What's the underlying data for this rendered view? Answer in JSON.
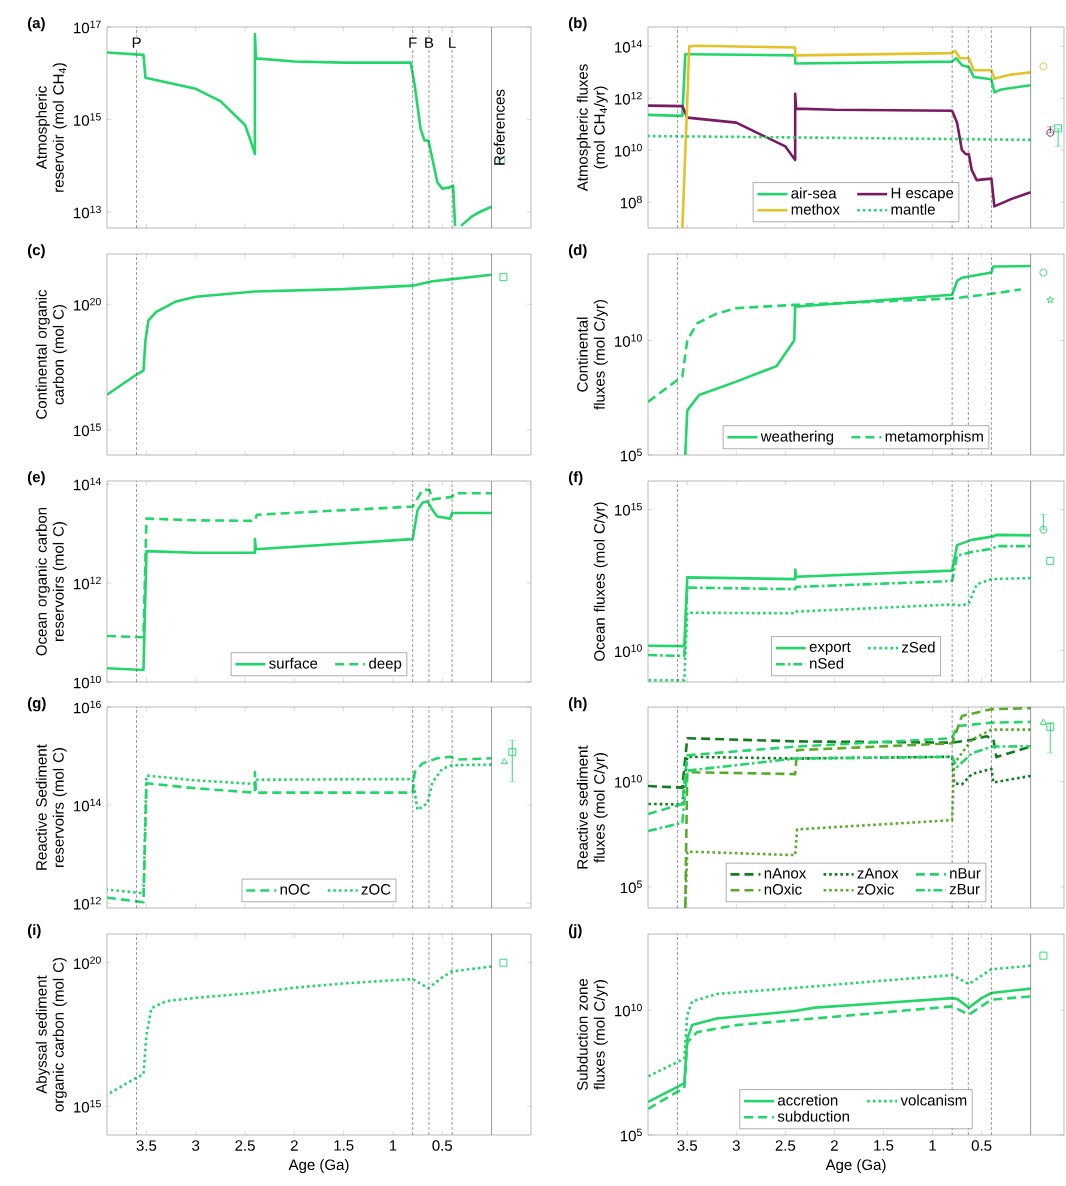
{
  "chart_data": [
    {
      "type": "line",
      "title": "(a)",
      "ylabel": "Atmospheric reservoir (mol CH$_{4}$)",
      "log": "y",
      "tick_labels": "y",
      "legend": false,
      "xlim": [
        3.9,
        -0.4
      ],
      "xticks": [
        3.5,
        3,
        2.5,
        2,
        1.5,
        1,
        0.5
      ],
      "ylim": [
        4500000000000.0,
        1e+17
      ],
      "yticks": [
        {
          "value": 10000000000000.0,
          "label": "10$^{13}$"
        },
        {
          "value": 1000000000000000.0,
          "label": "10$^{15}$"
        },
        {
          "value": 1e+17,
          "label": "10$^{17}$"
        }
      ],
      "ref_lines": [
        {
          "axis": "x",
          "value": 3.6,
          "label": "P",
          "line_style": "dashed",
          "color": "#555555"
        },
        {
          "axis": "x",
          "value": 0.8,
          "label": "F",
          "line_style": "dashed",
          "color": "#555555"
        },
        {
          "axis": "x",
          "value": 0.635,
          "label": "B",
          "line_style": "dashed",
          "color": "#555555"
        },
        {
          "axis": "x",
          "value": 0.4,
          "label": "L",
          "line_style": "dashed",
          "color": "#555555"
        },
        {
          "axis": "x",
          "value": 0,
          "label": "References",
          "line_style": "solid",
          "color": "#555555"
        }
      ],
      "series": [
        {
          "color": "#22d66a",
          "line_style": "solid",
          "x": [
            3.9,
            3.53,
            3.51,
            3.0,
            2.75,
            2.5,
            2.45,
            2.4,
            2.4,
            2.39,
            2.0,
            1.5,
            0.82,
            0.78,
            0.72,
            0.68,
            0.64,
            0.6,
            0.55,
            0.5,
            0.42,
            0.39,
            0.37,
            0.34,
            0.31,
            0.2,
            0.1,
            0.0
          ],
          "values": [
            2.8e+16,
            2.5e+16,
            8000000000000000.0,
            4600000000000000.0,
            2500000000000000.0,
            760000000000000.0,
            380000000000000.0,
            180000000000000.0,
            7e+16,
            2.1e+16,
            1.8e+16,
            1.7e+16,
            1.7e+16,
            5600000000000000.0,
            630000000000000.0,
            350000000000000.0,
            350000000000000.0,
            140000000000000.0,
            44000000000000.0,
            32000000000000.0,
            34000000000000.0,
            37000000000000.0,
            5000000000000.0,
            null,
            5000000000000.0,
            8000000000000.0,
            10500000000000.0,
            13000000000000.0
          ]
        },
        {
          "type": "scatter",
          "marker": "circle",
          "color": "#22d66a",
          "x": [
            -0.1
          ],
          "values": [
            130000000000000.0
          ]
        }
      ]
    },
    {
      "type": "line",
      "title": "(b)",
      "ylabel": "Atmospheric fluxes (mol CH$_{4}$/yr)",
      "log": "y",
      "tick_labels": "y",
      "legend": "bottom",
      "xlim": [
        3.9,
        -0.34
      ],
      "xticks": [
        3.5,
        3,
        2.5,
        2,
        1.5,
        1,
        0.5
      ],
      "ylim": [
        10000000.0,
        560000000000000.0
      ],
      "yticks": [
        {
          "value": 100000000.0,
          "label": "10$^{8}$"
        },
        {
          "value": 10000000000.0,
          "label": "10$^{10}$"
        },
        {
          "value": 1000000000000.0,
          "label": "10$^{12}$"
        },
        {
          "value": 100000000000000.0,
          "label": "10$^{14}$"
        }
      ],
      "ref_lines": [
        {
          "axis": "x",
          "value": 3.6,
          "line_style": "dashed",
          "color": "#555555"
        },
        {
          "axis": "x",
          "value": 0.8,
          "line_style": "dashed",
          "color": "#555555"
        },
        {
          "axis": "x",
          "value": 0.635,
          "line_style": "dashed",
          "color": "#555555"
        },
        {
          "axis": "x",
          "value": 0.4,
          "line_style": "dashed",
          "color": "#555555"
        },
        {
          "axis": "x",
          "value": 0,
          "line_style": "solid",
          "color": "#555555"
        }
      ],
      "series": [
        {
          "name": "air-sea",
          "color": "#22d66a",
          "line_style": "solid",
          "x": [
            3.9,
            3.55,
            3.52,
            3.45,
            2.4,
            2.4,
            0.8,
            0.76,
            0.7,
            0.63,
            0.58,
            0.4,
            0.37,
            0.3,
            0.0
          ],
          "values": [
            230000000000.0,
            210000000000.0,
            50000000000000.0,
            50000000000000.0,
            45000000000000.0,
            22000000000000.0,
            26000000000000.0,
            35000000000000.0,
            19000000000000.0,
            16000000000000.0,
            6600000000000.0,
            5400000000000.0,
            1700000000000.0,
            2200000000000.0,
            3200000000000.0
          ]
        },
        {
          "name": "H escape",
          "color": "#7a1a62",
          "line_style": "solid",
          "x": [
            3.9,
            3.55,
            3.5,
            3.0,
            2.75,
            2.5,
            2.4,
            2.4,
            2.39,
            2.0,
            0.8,
            0.75,
            0.7,
            0.66,
            0.63,
            0.6,
            0.55,
            0.4,
            0.37,
            0.2,
            0.0
          ],
          "values": [
            520000000000.0,
            500000000000.0,
            180000000000.0,
            115000000000.0,
            40000000000.0,
            14000000000.0,
            4200000000.0,
            1500000000000.0,
            400000000000.0,
            360000000000.0,
            330000000000.0,
            115000000000.0,
            10000000000.0,
            7000000000.0,
            7000000000.0,
            1700000000.0,
            700000000.0,
            800000000.0,
            68000000.0,
            130000000.0,
            240000000.0
          ]
        },
        {
          "name": "methox",
          "color": "#e3c22b",
          "line_style": "solid",
          "x": [
            3.55,
            3.5,
            3.48,
            3.4,
            2.4,
            2.4,
            0.8,
            0.77,
            0.72,
            0.63,
            0.58,
            0.4,
            0.37,
            0.2,
            0.0
          ],
          "values": [
            10000000.0,
            690000000000.0,
            100000000000000.0,
            106000000000000.0,
            91000000000000.0,
            45000000000000.0,
            55000000000000.0,
            68000000000000.0,
            35000000000000.0,
            35000000000000.0,
            12000000000000.0,
            12000000000000.0,
            5700000000000.0,
            8200000000000.0,
            10000000000000.0
          ]
        },
        {
          "name": "mantle",
          "color": "#22d66a",
          "line_style": "dotted",
          "x": [
            3.9,
            2.0,
            0.0
          ],
          "values": [
            35000000000.0,
            30000000000.0,
            25000000000.0
          ]
        },
        {
          "type": "scatter",
          "marker": "circle",
          "color": "#e3c22b",
          "x": [
            -0.13
          ],
          "values": [
            17000000000000.0
          ]
        },
        {
          "type": "scatter",
          "marker": "circle",
          "color": "#7a1a62",
          "x": [
            -0.2
          ],
          "values": [
            47000000000.0
          ],
          "errors": [
            [
              47000000000.0,
              80000000000.0
            ]
          ]
        },
        {
          "type": "scatter",
          "marker": "square",
          "color": "#22d66a",
          "x": [
            -0.28
          ],
          "values": [
            70000000000.0
          ],
          "errors": [
            [
              14000000000.0,
              70000000000.0
            ]
          ]
        }
      ]
    },
    {
      "type": "line",
      "title": "(c)",
      "ylabel": "Continental organic carbon (mol C)",
      "log": "y",
      "tick_labels": "y",
      "legend": false,
      "xlim": [
        3.9,
        -0.4
      ],
      "xticks": [
        3.5,
        3,
        2.5,
        2,
        1.5,
        1,
        0.5
      ],
      "ylim": [
        100000000000000.0,
        1e+22
      ],
      "yticks": [
        {
          "value": 1000000000000000.0,
          "label": "10$^{15}$"
        },
        {
          "value": 1e+20,
          "label": "10$^{20}$"
        }
      ],
      "ref_lines": [
        {
          "axis": "x",
          "value": 3.6,
          "line_style": "dashed",
          "color": "#555555"
        },
        {
          "axis": "x",
          "value": 0.8,
          "line_style": "dashed",
          "color": "#555555"
        },
        {
          "axis": "x",
          "value": 0.635,
          "line_style": "dashed",
          "color": "#555555"
        },
        {
          "axis": "x",
          "value": 0.4,
          "line_style": "dashed",
          "color": "#555555"
        },
        {
          "axis": "x",
          "value": 0,
          "line_style": "solid",
          "color": "#555555"
        }
      ],
      "series": [
        {
          "color": "#22d66a",
          "line_style": "solid",
          "x": [
            3.9,
            3.6,
            3.53,
            3.51,
            3.48,
            3.4,
            3.2,
            3.0,
            2.4,
            1.5,
            0.8,
            0.6,
            0.4,
            0.0
          ],
          "values": [
            2.5e+16,
            1.6e+17,
            2.3e+17,
            3.6e+18,
            2.3e+19,
            5e+19,
            1.3e+20,
            2e+20,
            3.2e+20,
            4e+20,
            5.5e+20,
            8.3e+20,
            1e+21,
            1.5e+21
          ]
        },
        {
          "type": "scatter",
          "marker": "square",
          "color": "#22d66a",
          "x": [
            -0.12
          ],
          "values": [
            1.2e+21
          ]
        }
      ]
    },
    {
      "type": "line",
      "title": "(d)",
      "ylabel": "Continental fluxes (mol C/yr)",
      "log": "y",
      "tick_labels": "y",
      "legend": "bottom",
      "xlim": [
        3.9,
        -0.34
      ],
      "xticks": [
        3.5,
        3,
        2.5,
        2,
        1.5,
        1,
        0.5
      ],
      "ylim": [
        100000.0,
        60000000000000.0
      ],
      "yticks": [
        {
          "value": 100000.0,
          "label": "10$^{5}$"
        },
        {
          "value": 10000000000.0,
          "label": "10$^{10}$"
        }
      ],
      "ref_lines": [
        {
          "axis": "x",
          "value": 3.6,
          "line_style": "dashed",
          "color": "#555555"
        },
        {
          "axis": "x",
          "value": 0.8,
          "line_style": "dashed",
          "color": "#555555"
        },
        {
          "axis": "x",
          "value": 0.635,
          "line_style": "dashed",
          "color": "#555555"
        },
        {
          "axis": "x",
          "value": 0.4,
          "line_style": "dashed",
          "color": "#555555"
        },
        {
          "axis": "x",
          "value": 0,
          "line_style": "solid",
          "color": "#555555"
        }
      ],
      "series": [
        {
          "name": "weathering",
          "color": "#22d66a",
          "line_style": "solid",
          "x": [
            3.52,
            3.5,
            3.38,
            3.0,
            2.59,
            2.41,
            2.4,
            1.5,
            0.8,
            0.75,
            0.7,
            0.4,
            0.38,
            0.0
          ],
          "values": [
            100000.0,
            8700000.0,
            42000000.0,
            160000000.0,
            760000000.0,
            10000000000.0,
            300000000000.0,
            590000000000.0,
            1000000000000.0,
            4000000000000.0,
            5500000000000.0,
            9300000000000.0,
            17000000000000.0,
            18000000000000.0
          ]
        },
        {
          "name": "metamorphism",
          "color": "#22d66a",
          "line_style": "dashed",
          "x": [
            3.9,
            3.6,
            3.55,
            3.5,
            3.4,
            3.2,
            3.0,
            2.4,
            0.8,
            0.4,
            0.1
          ],
          "values": [
            21000000.0,
            190000000.0,
            270000000.0,
            10000000000.0,
            56000000000.0,
            150000000000.0,
            260000000000.0,
            360000000000.0,
            680000000000.0,
            1100000000000.0,
            1700000000000.0
          ]
        },
        {
          "type": "scatter",
          "marker": "circle",
          "color": "#22d66a",
          "x": [
            -0.13
          ],
          "values": [
            9300000000000.0
          ]
        },
        {
          "type": "scatter",
          "marker": "star",
          "color": "#22d66a",
          "x": [
            -0.2
          ],
          "values": [
            590000000000.0
          ]
        }
      ]
    },
    {
      "type": "line",
      "title": "(e)",
      "ylabel": "Ocean organic carbon reservoirs (mol C)",
      "log": "y",
      "tick_labels": "y",
      "legend": "bottom",
      "xlim": [
        3.9,
        -0.4
      ],
      "xticks": [
        3.5,
        3,
        2.5,
        2,
        1.5,
        1,
        0.5
      ],
      "ylim": [
        10000000000.0,
        115000000000000.0
      ],
      "yticks": [
        {
          "value": 10000000000.0,
          "label": "10$^{10}$"
        },
        {
          "value": 1000000000000.0,
          "label": "10$^{12}$"
        },
        {
          "value": 100000000000000.0,
          "label": "10$^{14}$"
        }
      ],
      "ref_lines": [
        {
          "axis": "x",
          "value": 3.6,
          "line_style": "dashed",
          "color": "#555555"
        },
        {
          "axis": "x",
          "value": 0.8,
          "line_style": "dashed",
          "color": "#555555"
        },
        {
          "axis": "x",
          "value": 0.635,
          "line_style": "dashed",
          "color": "#555555"
        },
        {
          "axis": "x",
          "value": 0.4,
          "line_style": "dashed",
          "color": "#555555"
        },
        {
          "axis": "x",
          "value": 0,
          "line_style": "solid",
          "color": "#555555"
        }
      ],
      "series": [
        {
          "name": "surface",
          "color": "#22d66a",
          "line_style": "solid",
          "x": [
            3.9,
            3.53,
            3.5,
            3.0,
            2.4,
            2.4,
            2.39,
            0.8,
            0.75,
            0.7,
            0.65,
            0.6,
            0.55,
            0.42,
            0.4,
            0.0
          ],
          "values": [
            19000000000.0,
            17500000000.0,
            4400000000000.0,
            4100000000000.0,
            4100000000000.0,
            7700000000000.0,
            4800000000000.0,
            7700000000000.0,
            30000000000000.0,
            42000000000000.0,
            45000000000000.0,
            30000000000000.0,
            22000000000000.0,
            20000000000000.0,
            26000000000000.0,
            26000000000000.0
          ]
        },
        {
          "name": "deep",
          "color": "#22d66a",
          "line_style": "dashed",
          "x": [
            3.9,
            3.53,
            3.5,
            3.0,
            2.4,
            2.38,
            0.8,
            0.7,
            0.63,
            0.6,
            0.4,
            0.38,
            0.0
          ],
          "values": [
            85000000000.0,
            80000000000.0,
            20000000000000.0,
            18500000000000.0,
            18000000000000.0,
            24000000000000.0,
            35000000000000.0,
            76000000000000.0,
            76000000000000.0,
            49000000000000.0,
            55000000000000.0,
            65000000000000.0,
            65000000000000.0
          ]
        }
      ]
    },
    {
      "type": "line",
      "title": "(f)",
      "ylabel": "Ocean fluxes (mol C/yr)",
      "log": "y",
      "tick_labels": "y",
      "legend": "bottom",
      "xlim": [
        3.9,
        -0.34
      ],
      "xticks": [
        3.5,
        3,
        2.5,
        2,
        1.5,
        1,
        0.5
      ],
      "ylim": [
        780000000.0,
        1e+16
      ],
      "yticks": [
        {
          "value": 10000000000.0,
          "label": "10$^{10}$"
        },
        {
          "value": 1000000000000000.0,
          "label": "10$^{15}$"
        }
      ],
      "ref_lines": [
        {
          "axis": "x",
          "value": 3.6,
          "line_style": "dashed",
          "color": "#555555"
        },
        {
          "axis": "x",
          "value": 0.8,
          "line_style": "dashed",
          "color": "#555555"
        },
        {
          "axis": "x",
          "value": 0.635,
          "line_style": "dashed",
          "color": "#555555"
        },
        {
          "axis": "x",
          "value": 0.4,
          "line_style": "dashed",
          "color": "#555555"
        },
        {
          "axis": "x",
          "value": 0,
          "line_style": "solid",
          "color": "#555555"
        }
      ],
      "series": [
        {
          "name": "export",
          "color": "#22d66a",
          "line_style": "solid",
          "x": [
            3.9,
            3.53,
            3.5,
            2.4,
            2.4,
            2.39,
            0.8,
            0.75,
            0.6,
            0.38,
            0.35,
            0.0
          ],
          "values": [
            15000000000.0,
            14500000000.0,
            3900000000000.0,
            3400000000000.0,
            7400000000000.0,
            4100000000000.0,
            6800000000000.0,
            54000000000000.0,
            83000000000000.0,
            110000000000000.0,
            125000000000000.0,
            120000000000000.0
          ]
        },
        {
          "name": "zSed",
          "color": "#22d66a",
          "line_style": "dotted",
          "x": [
            3.9,
            3.53,
            3.5,
            2.4,
            2.39,
            0.8,
            0.7,
            0.63,
            0.55,
            0.4,
            0.0
          ],
          "values": [
            900000000.0,
            900000000.0,
            220000000000.0,
            210000000000.0,
            240000000000.0,
            430000000000.0,
            390000000000.0,
            480000000000.0,
            2200000000000.0,
            3400000000000.0,
            3700000000000.0
          ]
        },
        {
          "name": "nSed",
          "color": "#22d66a",
          "line_style": "dashdot",
          "x": [
            3.9,
            3.53,
            3.5,
            2.4,
            2.39,
            0.8,
            0.75,
            0.6,
            0.38,
            0.35,
            0.0
          ],
          "values": [
            7000000000.0,
            6500000000.0,
            1700000000000.0,
            1500000000000.0,
            1800000000000.0,
            2900000000000.0,
            23000000000000.0,
            31000000000000.0,
            41000000000000.0,
            50000000000000.0,
            50000000000000.0
          ]
        },
        {
          "type": "scatter",
          "marker": "circle",
          "color": "#22d66a",
          "x": [
            -0.13
          ],
          "values": [
            190000000000000.0
          ],
          "errors": [
            [
              190000000000000.0,
              660000000000000.0
            ]
          ]
        },
        {
          "type": "scatter",
          "marker": "square",
          "color": "#22d66a",
          "x": [
            -0.2
          ],
          "values": [
            15000000000000.0
          ]
        }
      ]
    },
    {
      "type": "line",
      "title": "(g)",
      "ylabel": "Reactive Sediment reservoirs (mol C)",
      "log": "y",
      "tick_labels": "y",
      "legend": "bottom",
      "xlim": [
        3.9,
        -0.4
      ],
      "xticks": [
        3.5,
        3,
        2.5,
        2,
        1.5,
        1,
        0.5
      ],
      "ylim": [
        800000000000.0,
        1e+16
      ],
      "yticks": [
        {
          "value": 1000000000000.0,
          "label": "10$^{12}$"
        },
        {
          "value": 100000000000000.0,
          "label": "10$^{14}$"
        },
        {
          "value": 1e+16,
          "label": "10$^{16}$"
        }
      ],
      "ref_lines": [
        {
          "axis": "x",
          "value": 3.6,
          "line_style": "dashed",
          "color": "#555555"
        },
        {
          "axis": "x",
          "value": 0.8,
          "line_style": "dashed",
          "color": "#555555"
        },
        {
          "axis": "x",
          "value": 0.635,
          "line_style": "dashed",
          "color": "#555555"
        },
        {
          "axis": "x",
          "value": 0.4,
          "line_style": "dashed",
          "color": "#555555"
        },
        {
          "axis": "x",
          "value": 0,
          "line_style": "solid",
          "color": "#555555"
        }
      ],
      "series": [
        {
          "name": "nOC",
          "color": "#22d66a",
          "line_style": "dashed",
          "x": [
            3.9,
            3.53,
            3.5,
            3.0,
            2.4,
            2.4,
            2.39,
            0.8,
            0.78,
            0.7,
            0.55,
            0.42,
            0.35,
            0.0
          ],
          "values": [
            1300000000000.0,
            1050000000000.0,
            280000000000000.0,
            220000000000000.0,
            180000000000000.0,
            470000000000000.0,
            180000000000000.0,
            180000000000000.0,
            470000000000000.0,
            710000000000000.0,
            900000000000000.0,
            970000000000000.0,
            850000000000000.0,
            900000000000000.0
          ]
        },
        {
          "name": "zOC",
          "color": "#22d66a",
          "line_style": "dotted",
          "x": [
            3.9,
            3.53,
            3.5,
            3.0,
            2.4,
            2.38,
            0.8,
            0.75,
            0.65,
            0.6,
            0.5,
            0.4,
            0.0
          ],
          "values": [
            1900000000000.0,
            1600000000000.0,
            400000000000000.0,
            320000000000000.0,
            270000000000000.0,
            330000000000000.0,
            340000000000000.0,
            79000000000000.0,
            110000000000000.0,
            290000000000000.0,
            550000000000000.0,
            650000000000000.0,
            670000000000000.0
          ]
        },
        {
          "type": "scatter",
          "marker": "triangle",
          "color": "#22d66a",
          "x": [
            -0.13
          ],
          "values": [
            760000000000000.0
          ]
        },
        {
          "type": "scatter",
          "marker": "square",
          "color": "#22d66a",
          "x": [
            -0.21
          ],
          "values": [
            1200000000000000.0
          ],
          "errors": [
            [
              300000000000000.0,
              2100000000000000.0
            ]
          ]
        }
      ]
    },
    {
      "type": "line",
      "title": "(h)",
      "ylabel": "Reactive sediment fluxes (mol C/yr)",
      "log": "y",
      "tick_labels": "y",
      "legend": "bottom",
      "xlim": [
        3.9,
        -0.34
      ],
      "xticks": [
        3.5,
        3,
        2.5,
        2,
        1.5,
        1,
        0.5
      ],
      "ylim": [
        10000.0,
        33000000000000.0
      ],
      "yticks": [
        {
          "value": 100000.0,
          "label": "10$^{5}$"
        },
        {
          "value": 10000000000.0,
          "label": "10$^{10}$"
        }
      ],
      "ref_lines": [
        {
          "axis": "x",
          "value": 3.6,
          "line_style": "dashed",
          "color": "#555555"
        },
        {
          "axis": "x",
          "value": 0.8,
          "line_style": "dashed",
          "color": "#555555"
        },
        {
          "axis": "x",
          "value": 0.635,
          "line_style": "dashed",
          "color": "#555555"
        },
        {
          "axis": "x",
          "value": 0.4,
          "line_style": "dashed",
          "color": "#555555"
        },
        {
          "axis": "x",
          "value": 0,
          "line_style": "solid",
          "color": "#555555"
        }
      ],
      "series": [
        {
          "name": "nAnox",
          "color": "#137c1f",
          "line_style": "dashed",
          "x": [
            3.9,
            3.55,
            3.5,
            2.4,
            0.8,
            0.6,
            0.45,
            0.38,
            0.35,
            0.0
          ],
          "values": [
            6000000000.0,
            5000000000.0,
            1100000000000.0,
            780000000000.0,
            680000000000.0,
            930000000000.0,
            1350000000000.0,
            1000000000000.0,
            140000000000.0,
            440000000000.0
          ]
        },
        {
          "name": "zAnox",
          "color": "#137c1f",
          "line_style": "dotted",
          "x": [
            3.9,
            3.55,
            3.5,
            2.4,
            0.8,
            0.78,
            0.7,
            0.6,
            0.4,
            0.38,
            0.0
          ],
          "values": [
            850000000.0,
            800000000.0,
            145000000000.0,
            120000000000.0,
            145000000000.0,
            8000000000.0,
            7200000000.0,
            22000000000.0,
            39000000000.0,
            8800000000.0,
            18000000000.0
          ]
        },
        {
          "name": "nBur",
          "color": "#22d66a",
          "line_style": "dashed",
          "x": [
            3.9,
            3.55,
            3.5,
            2.4,
            0.8,
            0.75,
            0.4,
            0.0
          ],
          "values": [
            280000000.0,
            850000000.0,
            170000000000.0,
            440000000000.0,
            1100000000000.0,
            4100000000000.0,
            6000000000000.0,
            6500000000000.0
          ]
        },
        {
          "name": "nOxic",
          "color": "#5aab2a",
          "line_style": "dashed",
          "x": [
            3.52,
            3.5,
            2.4,
            2.38,
            0.8,
            0.7,
            0.4,
            0.0
          ],
          "values": [
            10000.0,
            27000000000.0,
            22000000000.0,
            300000000000.0,
            630000000000.0,
            12500000000000.0,
            26000000000000.0,
            29000000000000.0
          ]
        },
        {
          "name": "zOxic",
          "color": "#5aab2a",
          "line_style": "dotted",
          "x": [
            3.52,
            3.5,
            2.4,
            2.38,
            0.8,
            0.78,
            0.6,
            0.4,
            0.0
          ],
          "values": [
            10000.0,
            4700000.0,
            3200000.0,
            53000000.0,
            145000000.0,
            68000000000.0,
            930000000000.0,
            2800000000000.0,
            2800000000000.0
          ]
        },
        {
          "name": "zBur",
          "color": "#22d66a",
          "line_style": "dashdot",
          "x": [
            3.9,
            3.55,
            3.5,
            2.4,
            0.8,
            0.75,
            0.6,
            0.4,
            0.0
          ],
          "values": [
            44000000.0,
            110000000.0,
            32000000000.0,
            120000000000.0,
            145000000000.0,
            47000000000.0,
            210000000000.0,
            440000000000.0,
            460000000000.0
          ]
        },
        {
          "type": "scatter",
          "marker": "triangle",
          "color": "#22d66a",
          "x": [
            -0.13
          ],
          "values": [
            6000000000000.0
          ]
        },
        {
          "type": "scatter",
          "marker": "square",
          "color": "#22d66a",
          "x": [
            -0.2
          ],
          "values": [
            3800000000000.0
          ],
          "errors": [
            [
              220000000000.0,
              6000000000000.0
            ]
          ]
        }
      ]
    },
    {
      "type": "line",
      "title": "(i)",
      "ylabel": "Abyssal sediment organic carbon (mol C)",
      "xlabel": "Age (Ga)",
      "log": "y",
      "legend": false,
      "xlim": [
        3.9,
        -0.4
      ],
      "xticks": [
        3.5,
        3,
        2.5,
        2,
        1.5,
        1,
        0.5
      ],
      "ylim": [
        100000000000000.0,
        1e+21
      ],
      "yticks": [
        {
          "value": 1000000000000000.0,
          "label": "10$^{15}$"
        },
        {
          "value": 1e+20,
          "label": "10$^{20}$"
        }
      ],
      "ref_lines": [
        {
          "axis": "x",
          "value": 3.6,
          "line_style": "dashed",
          "color": "#555555"
        },
        {
          "axis": "x",
          "value": 0.8,
          "line_style": "dashed",
          "color": "#555555"
        },
        {
          "axis": "x",
          "value": 0.635,
          "line_style": "dashed",
          "color": "#555555"
        },
        {
          "axis": "x",
          "value": 0.4,
          "line_style": "dashed",
          "color": "#555555"
        },
        {
          "axis": "x",
          "value": 0,
          "line_style": "solid",
          "color": "#555555"
        }
      ],
      "series": [
        {
          "color": "#22d66a",
          "line_style": "dotted",
          "x": [
            3.9,
            3.6,
            3.53,
            3.5,
            3.45,
            3.3,
            3.0,
            2.4,
            2.0,
            1.5,
            0.8,
            0.64,
            0.5,
            0.4,
            0.0
          ],
          "values": [
            2500000000000000.0,
            1e+16,
            1.3e+16,
            3e+17,
            2.6e+18,
            4.6e+18,
            6e+18,
            9e+18,
            1.35e+19,
            1.9e+19,
            2.7e+19,
            1.3e+19,
            3.1e+19,
            5e+19,
            7.4e+19
          ]
        },
        {
          "type": "scatter",
          "marker": "square",
          "color": "#22d66a",
          "x": [
            -0.12
          ],
          "values": [
            1e+20
          ]
        }
      ]
    },
    {
      "type": "line",
      "title": "(j)",
      "ylabel": "Subduction zone fluxes (mol C/yr)",
      "xlabel": "Age (Ga)",
      "log": "y",
      "legend": "bottom",
      "xlim": [
        3.9,
        -0.34
      ],
      "xticks": [
        3.5,
        3,
        2.5,
        2,
        1.5,
        1,
        0.5
      ],
      "ylim": [
        100000.0,
        11000000000000.0
      ],
      "yticks": [
        {
          "value": 100000.0,
          "label": "10$^{5}$"
        },
        {
          "value": 10000000000.0,
          "label": "10$^{10}$"
        }
      ],
      "ref_lines": [
        {
          "axis": "x",
          "value": 3.6,
          "line_style": "dashed",
          "color": "#555555"
        },
        {
          "axis": "x",
          "value": 0.8,
          "line_style": "dashed",
          "color": "#555555"
        },
        {
          "axis": "x",
          "value": 0.635,
          "line_style": "dashed",
          "color": "#555555"
        },
        {
          "axis": "x",
          "value": 0.4,
          "line_style": "dashed",
          "color": "#555555"
        },
        {
          "axis": "x",
          "value": 0,
          "line_style": "solid",
          "color": "#555555"
        }
      ],
      "series": [
        {
          "name": "accretion",
          "color": "#22d66a",
          "line_style": "solid",
          "x": [
            3.9,
            3.6,
            3.53,
            3.5,
            3.45,
            3.2,
            2.4,
            2.2,
            1.5,
            0.8,
            0.75,
            0.63,
            0.5,
            0.4,
            0.0
          ],
          "values": [
            2100000.0,
            8500000.0,
            12000000.0,
            700000000.0,
            2500000000.0,
            4600000000.0,
            9100000000.0,
            12500000000.0,
            19000000000.0,
            30000000000.0,
            28000000000.0,
            12500000000.0,
            30000000000.0,
            48000000000.0,
            72000000000.0
          ]
        },
        {
          "name": "volcanism",
          "color": "#22d66a",
          "line_style": "dotted",
          "x": [
            3.9,
            3.6,
            3.53,
            3.5,
            3.45,
            3.2,
            2.4,
            1.5,
            0.8,
            0.63,
            0.4,
            0.0
          ],
          "values": [
            22000000.0,
            83000000.0,
            120000000.0,
            6300000000.0,
            22000000000.0,
            44000000000.0,
            77000000000.0,
            150000000000.0,
            250000000000.0,
            110000000000.0,
            430000000000.0,
            590000000000.0
          ]
        },
        {
          "name": "subduction",
          "color": "#22d66a",
          "line_style": "dashed",
          "x": [
            3.9,
            3.6,
            3.53,
            3.5,
            3.4,
            3.0,
            2.0,
            0.8,
            0.63,
            0.4,
            0.0
          ],
          "values": [
            1100000.0,
            5400000.0,
            7400000.0,
            510000000.0,
            1300000000.0,
            2500000000.0,
            5400000000.0,
            14000000000.0,
            6600000000.0,
            26000000000.0,
            35000000000.0
          ]
        },
        {
          "type": "scatter",
          "marker": "square",
          "color": "#22d66a",
          "x": [
            -0.13
          ],
          "values": [
            1500000000000.0
          ]
        }
      ]
    }
  ]
}
